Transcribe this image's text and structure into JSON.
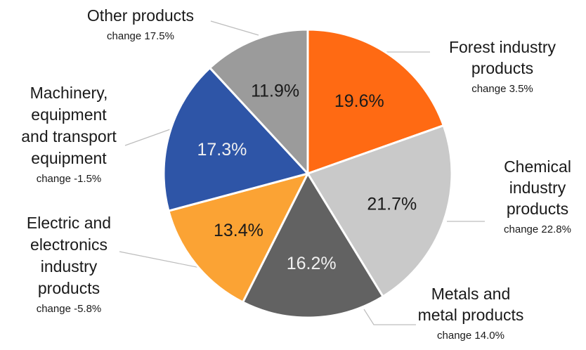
{
  "chart_data": {
    "type": "pie",
    "slices": [
      {
        "name": [
          "Forest industry",
          "products"
        ],
        "change": "change 3.5%",
        "value": 19.6,
        "label": "19.6%",
        "color": "#ff6a13",
        "label_color": "#1a1a1a"
      },
      {
        "name": [
          "Chemical",
          "industry",
          "products"
        ],
        "change": "change 22.8%",
        "value": 21.7,
        "label": "21.7%",
        "color": "#c9c9c9",
        "label_color": "#1a1a1a"
      },
      {
        "name": [
          "Metals and",
          "metal products"
        ],
        "change": "change 14.0%",
        "value": 16.2,
        "label": "16.2%",
        "color": "#626262",
        "label_color": "#f0f0f0"
      },
      {
        "name": [
          "Electric and",
          "electronics",
          "industry",
          "products"
        ],
        "change": "change -5.8%",
        "value": 13.4,
        "label": "13.4%",
        "color": "#fba334",
        "label_color": "#1a1a1a"
      },
      {
        "name": [
          "Machinery,",
          "equipment",
          "and transport",
          "equipment"
        ],
        "change": "change -1.5%",
        "value": 17.3,
        "label": "17.3%",
        "color": "#2e55a7",
        "label_color": "#f0f0f0"
      },
      {
        "name": [
          "Other products"
        ],
        "change": "change 17.5%",
        "value": 11.9,
        "label": "11.9%",
        "color": "#9b9b9b",
        "label_color": "#1a1a1a"
      }
    ],
    "start_angle": "12 o'clock",
    "direction": "clockwise"
  }
}
